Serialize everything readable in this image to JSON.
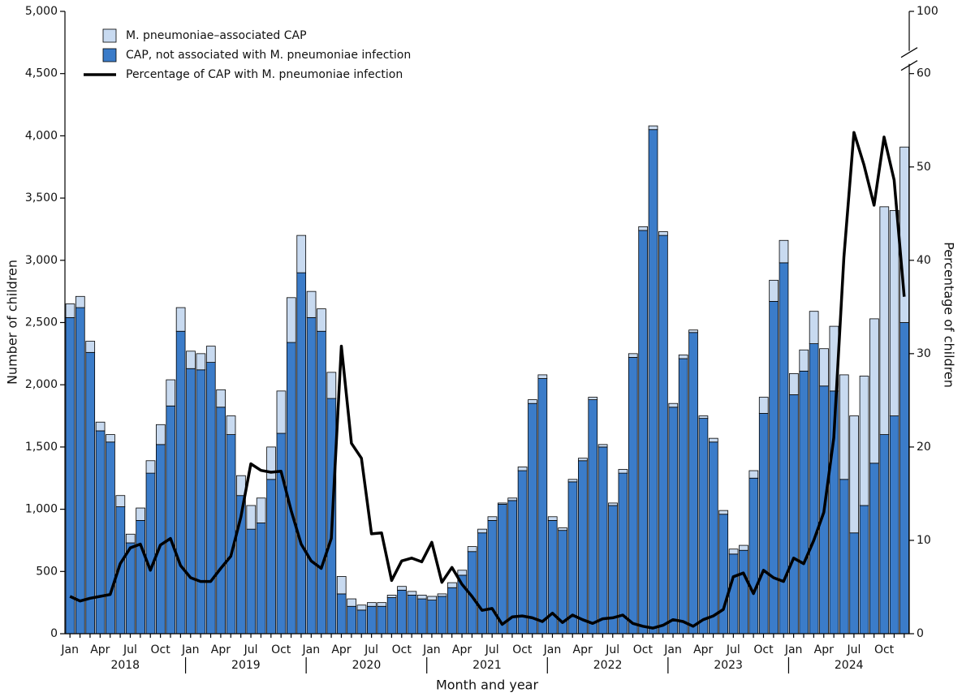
{
  "chart_data": {
    "type": "bar",
    "x_label": "Month and year",
    "y_label": "Number of children",
    "y2_label": "Percentage of children",
    "categories": [
      "Jan",
      null,
      null,
      "Apr",
      null,
      null,
      "Jul",
      null,
      null,
      "Oct",
      null,
      null,
      "Jan",
      null,
      null,
      "Apr",
      null,
      null,
      "Jul",
      null,
      null,
      "Oct",
      null,
      null,
      "Jan",
      null,
      null,
      "Apr",
      null,
      null,
      "Jul",
      null,
      null,
      "Oct",
      null,
      null,
      "Jan",
      null,
      null,
      "Apr",
      null,
      null,
      "Jul",
      null,
      null,
      "Oct",
      null,
      null,
      "Jan",
      null,
      null,
      "Apr",
      null,
      null,
      "Jul",
      null,
      null,
      "Oct",
      null,
      null,
      "Jan",
      null,
      null,
      "Apr",
      null,
      null,
      "Jul",
      null,
      null,
      "Oct",
      null,
      null,
      "Jan",
      null,
      null,
      "Apr",
      null,
      null,
      "Jul",
      null,
      null,
      "Oct",
      null,
      null
    ],
    "year_labels": [
      "2018",
      "2019",
      "2020",
      "2021",
      "2022",
      "2023",
      "2024"
    ],
    "series": [
      {
        "name": "M. pneumoniae–associated CAP",
        "color": "#c8daf0",
        "values": [
          110,
          90,
          90,
          70,
          60,
          90,
          70,
          100,
          100,
          160,
          210,
          190,
          140,
          130,
          130,
          140,
          150,
          160,
          190,
          200,
          260,
          340,
          360,
          300,
          210,
          180,
          210,
          140,
          60,
          40,
          30,
          30,
          20,
          30,
          30,
          30,
          30,
          20,
          40,
          40,
          40,
          30,
          30,
          10,
          20,
          30,
          30,
          30,
          30,
          20,
          20,
          20,
          20,
          20,
          20,
          30,
          30,
          30,
          30,
          30,
          30,
          30,
          20,
          20,
          30,
          30,
          40,
          40,
          60,
          130,
          170,
          180,
          170,
          170,
          260,
          300,
          520,
          840,
          940,
          1040,
          1160,
          1830,
          1650,
          1410
        ]
      },
      {
        "name": "CAP, not associated with M. pneumoniae infection",
        "color": "#3b7cc9",
        "values": [
          2540,
          2620,
          2260,
          1630,
          1540,
          1020,
          730,
          910,
          1290,
          1520,
          1830,
          2430,
          2130,
          2120,
          2180,
          1820,
          1600,
          1110,
          840,
          890,
          1240,
          1610,
          2340,
          2900,
          2540,
          2430,
          1890,
          320,
          220,
          190,
          220,
          220,
          290,
          350,
          310,
          280,
          270,
          300,
          370,
          470,
          660,
          810,
          910,
          1040,
          1070,
          1310,
          1850,
          2050,
          910,
          830,
          1220,
          1390,
          1880,
          1500,
          1030,
          1290,
          2220,
          3240,
          4050,
          3200,
          1820,
          2210,
          2420,
          1730,
          1540,
          960,
          640,
          670,
          1250,
          1770,
          2670,
          2980,
          1920,
          2110,
          2330,
          1990,
          1950,
          1240,
          810,
          1030,
          1370,
          1600,
          1750,
          2500
        ]
      },
      {
        "name": "Percentage of CAP with M. pneumoniae infection",
        "color": "#000000",
        "axis": "y2",
        "values": [
          4,
          3.5,
          3.8,
          4,
          4.2,
          7.5,
          9.2,
          9.6,
          6.8,
          9.5,
          10.2,
          7.3,
          6,
          5.6,
          5.6,
          7,
          8.3,
          12.5,
          18.2,
          17.5,
          17.3,
          17.4,
          13.2,
          9.6,
          7.8,
          7,
          10.2,
          30.8,
          20.4,
          18.8,
          10.7,
          10.8,
          5.7,
          7.8,
          8.1,
          7.7,
          9.8,
          5.5,
          7.1,
          5.3,
          4,
          2.5,
          2.7,
          1,
          1.8,
          1.9,
          1.7,
          1.3,
          2.2,
          1.2,
          2,
          1.5,
          1.1,
          1.6,
          1.7,
          2,
          1.1,
          0.8,
          0.6,
          0.9,
          1.5,
          1.3,
          0.8,
          1.5,
          1.9,
          2.6,
          6.1,
          6.5,
          4.3,
          6.8,
          6,
          5.6,
          8.1,
          7.5,
          10,
          13,
          21,
          40.3,
          53.7,
          50.2,
          45.9,
          53.2,
          48.6,
          36.1
        ]
      }
    ],
    "ylim": [
      0,
      5000
    ],
    "yticks": [
      0,
      500,
      {
        "value": 1000,
        "label": "1,000"
      },
      {
        "value": 1500,
        "label": "1,500"
      },
      {
        "value": 2000,
        "label": "2,000"
      },
      {
        "value": 2500,
        "label": "2,500"
      },
      {
        "value": 3000,
        "label": "3,000"
      },
      {
        "value": 3500,
        "label": "3,500"
      },
      {
        "value": 4000,
        "label": "4,000"
      },
      {
        "value": 4500,
        "label": "4,500"
      },
      {
        "value": 5000,
        "label": "5,000"
      }
    ],
    "y2lim": [
      0,
      100
    ],
    "y2ticks": [
      0,
      10,
      20,
      30,
      40,
      50,
      60,
      100
    ],
    "y2_axis_break": true,
    "stacked": true,
    "legend": "top-left"
  }
}
